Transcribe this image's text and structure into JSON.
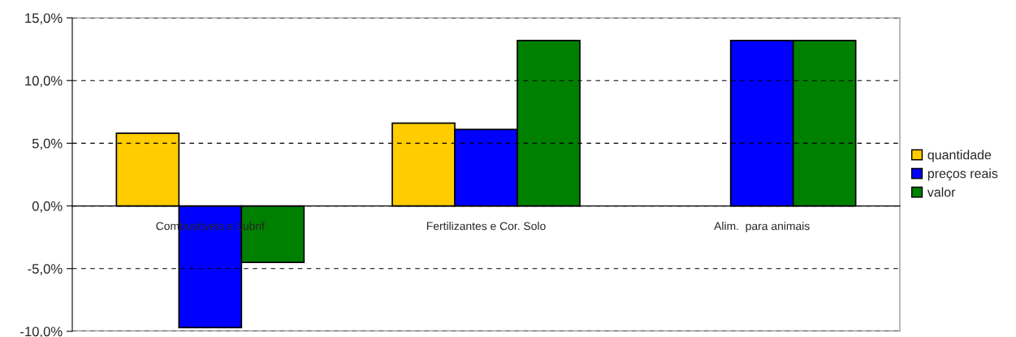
{
  "chart_data": {
    "type": "bar",
    "categories": [
      "Combustíveis e Lubrif",
      "Fertilizantes e Cor. Solo",
      "Alim.  para animais"
    ],
    "series": [
      {
        "name": "quantidade",
        "color": "#ffcc00",
        "values": [
          5.8,
          6.6,
          null
        ]
      },
      {
        "name": "preços reais",
        "color": "#0000ff",
        "values": [
          -9.7,
          6.1,
          13.2
        ]
      },
      {
        "name": "valor",
        "color": "#008000",
        "values": [
          -4.5,
          13.2,
          13.2
        ]
      }
    ],
    "ylim": [
      -10,
      15
    ],
    "yticks": [
      {
        "value": -10,
        "label": "-10,0%"
      },
      {
        "value": -5,
        "label": "-5,0%"
      },
      {
        "value": 0,
        "label": "0,0%"
      },
      {
        "value": 5,
        "label": "5,0%"
      },
      {
        "value": 10,
        "label": "10,0%"
      },
      {
        "value": 15,
        "label": "15,0%"
      }
    ],
    "grid": "y",
    "legend": "right"
  }
}
